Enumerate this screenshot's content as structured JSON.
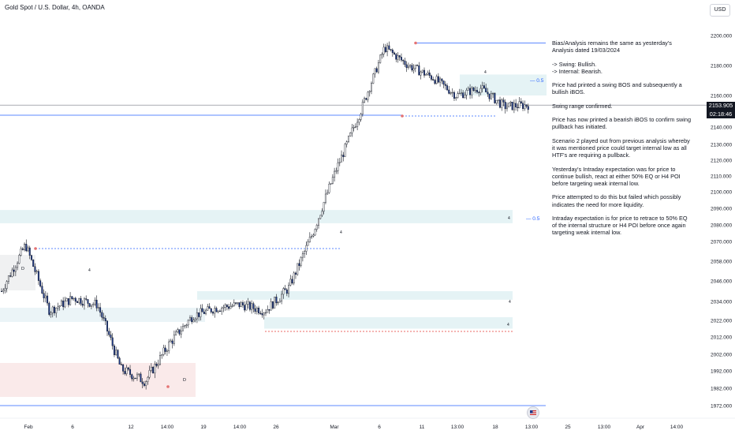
{
  "header": {
    "title": "Gold Spot / U.S. Dollar, 4h, OANDA",
    "currency": "USD"
  },
  "price_tag": {
    "price": "2153.905",
    "countdown": "02:18:46"
  },
  "notes": [
    "Bias/Analysis remains the same as yesterday's Analysis dated 19/03/2024",
    "-> Swing:  Bullish.\n-> Internal:  Bearish.",
    "Price had printed a swing BOS and subsequently a bullish iBOS.",
    "Swing range confirmed.",
    "Price has now printed a bearish iBOS to confirm swing pullback has initiated.",
    "Scenario 2 played out from previous analysis whereby it was mentioned price could target internal low as all HTF's are requiring a pullback.",
    "Yesterday's Intraday expectation was for price to continue bullish, react at either 50% EQ or H4 POI before targeting weak internal low.",
    "Price attempted to do this but failed which possibly indicates the need for more liquidity.",
    "Intraday expectation is for price to retrace to 50% EQ of the internal structure or H4 POI before once again targeting weak internal low."
  ],
  "markers": {
    "eq_label": "0.5",
    "poi_label": "4",
    "demand_label": "D"
  },
  "chart_data": {
    "type": "candlestick",
    "symbol": "Gold Spot / U.S. Dollar",
    "timeframe": "4h",
    "y_axis_ticks": [
      2200,
      2180,
      2160,
      2140,
      2130,
      2120,
      2110,
      2100,
      2090,
      2080,
      2070,
      2058,
      2046,
      2034,
      2022,
      2012,
      2002,
      1992,
      1982,
      1972
    ],
    "y_axis_tick_labels": [
      "2200.000",
      "2180.000",
      "2160.000",
      "2140.000",
      "2130.000",
      "2120.000",
      "2110.000",
      "2100.000",
      "2090.000",
      "2080.000",
      "2070.000",
      "2058.000",
      "2046.000",
      "2034.000",
      "2022.000",
      "2012.000",
      "2002.000",
      "1992.000",
      "1982.000",
      "1972.000"
    ],
    "x_axis_labels": [
      "Feb",
      "6",
      "12",
      "14:00",
      "19",
      "14:00",
      "26",
      "Mar",
      "6",
      "11",
      "13:00",
      "18",
      "13:00",
      "25",
      "13:00",
      "Apr",
      "14:00"
    ],
    "last_price": 2153.905,
    "path_keypoints": [
      [
        "Feb 1",
        2040
      ],
      [
        "Feb 2",
        2068
      ],
      [
        "Feb 5",
        2028
      ],
      [
        "Feb 7",
        2036
      ],
      [
        "Feb 9",
        2032
      ],
      [
        "Feb 13",
        1993
      ],
      [
        "Feb 14",
        1986
      ],
      [
        "Feb 16",
        2008
      ],
      [
        "Feb 20",
        2025
      ],
      [
        "Feb 22",
        2030
      ],
      [
        "Feb 26",
        2032
      ],
      [
        "Feb 27",
        2028
      ],
      [
        "Feb 29",
        2042
      ],
      [
        "Mar 1",
        2075
      ],
      [
        "Mar 4",
        2115
      ],
      [
        "Mar 6",
        2150
      ],
      [
        "Mar 8",
        2192
      ],
      [
        "Mar 11",
        2180
      ],
      [
        "Mar 13",
        2172
      ],
      [
        "Mar 15",
        2160
      ],
      [
        "Mar 18",
        2165
      ],
      [
        "Mar 19",
        2153
      ],
      [
        "Mar 20",
        2154
      ]
    ],
    "levels": [
      {
        "name": "swing-high",
        "value": 2195
      },
      {
        "name": "current-price",
        "value": 2153.905
      },
      {
        "name": "swing-low",
        "value": 2146
      },
      {
        "name": "bottom-line",
        "value": 1972
      }
    ],
    "zones": [
      {
        "kind": "supply",
        "from": 2160,
        "to": 2174
      },
      {
        "kind": "demand",
        "from": 2081,
        "to": 2089
      },
      {
        "kind": "demand",
        "from": 2035,
        "to": 2040
      },
      {
        "kind": "demand",
        "from": 2017,
        "to": 2024
      }
    ],
    "grid": false,
    "legend": "none"
  }
}
